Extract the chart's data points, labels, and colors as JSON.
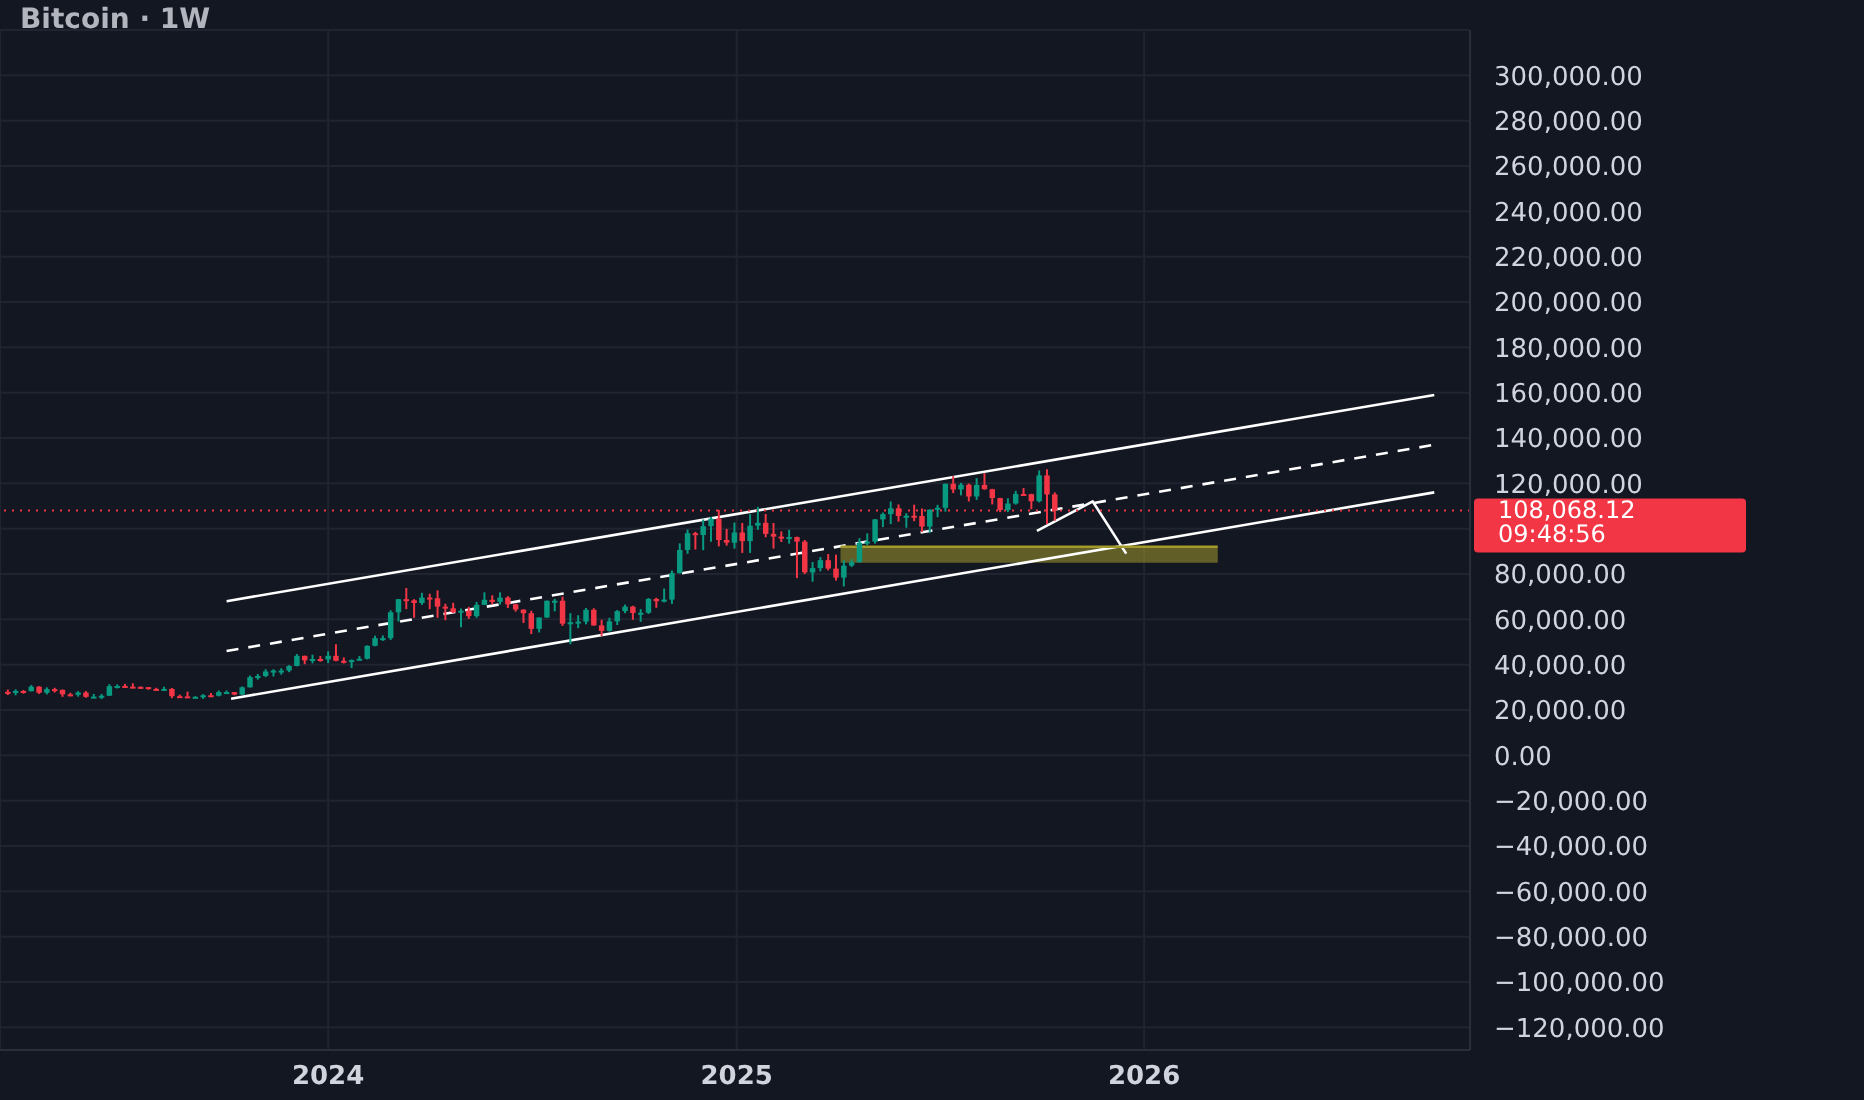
{
  "chart_data": {
    "type": "candlestick",
    "title": "Bitcoin · 1W",
    "x": [
      "2023-03-20",
      "2023-03-27",
      "2023-04-03",
      "2023-04-10",
      "2023-04-17",
      "2023-04-24",
      "2023-05-01",
      "2023-05-08",
      "2023-05-15",
      "2023-05-22",
      "2023-05-29",
      "2023-06-05",
      "2023-06-12",
      "2023-06-19",
      "2023-06-26",
      "2023-07-03",
      "2023-07-10",
      "2023-07-17",
      "2023-07-24",
      "2023-07-31",
      "2023-08-07",
      "2023-08-14",
      "2023-08-21",
      "2023-08-28",
      "2023-09-04",
      "2023-09-11",
      "2023-09-18",
      "2023-09-25",
      "2023-10-02",
      "2023-10-09",
      "2023-10-16",
      "2023-10-23",
      "2023-10-30",
      "2023-11-06",
      "2023-11-13",
      "2023-11-20",
      "2023-11-27",
      "2023-12-04",
      "2023-12-11",
      "2023-12-18",
      "2023-12-25",
      "2024-01-01",
      "2024-01-08",
      "2024-01-15",
      "2024-01-22",
      "2024-01-29",
      "2024-02-05",
      "2024-02-12",
      "2024-02-19",
      "2024-02-26",
      "2024-03-04",
      "2024-03-11",
      "2024-03-18",
      "2024-03-25",
      "2024-04-01",
      "2024-04-08",
      "2024-04-15",
      "2024-04-22",
      "2024-04-29",
      "2024-05-06",
      "2024-05-13",
      "2024-05-20",
      "2024-05-27",
      "2024-06-03",
      "2024-06-10",
      "2024-06-17",
      "2024-06-24",
      "2024-07-01",
      "2024-07-08",
      "2024-07-15",
      "2024-07-22",
      "2024-07-29",
      "2024-08-05",
      "2024-08-12",
      "2024-08-19",
      "2024-08-26",
      "2024-09-02",
      "2024-09-09",
      "2024-09-16",
      "2024-09-23",
      "2024-09-30",
      "2024-10-07",
      "2024-10-14",
      "2024-10-21",
      "2024-10-28",
      "2024-11-04",
      "2024-11-11",
      "2024-11-18",
      "2024-11-25",
      "2024-12-02",
      "2024-12-09",
      "2024-12-16",
      "2024-12-23",
      "2024-12-30",
      "2025-01-06",
      "2025-01-13",
      "2025-01-20",
      "2025-01-27",
      "2025-02-03",
      "2025-02-10",
      "2025-02-17",
      "2025-02-24",
      "2025-03-03",
      "2025-03-10",
      "2025-03-17",
      "2025-03-24",
      "2025-03-31",
      "2025-04-07",
      "2025-04-14",
      "2025-04-21",
      "2025-04-28",
      "2025-05-05",
      "2025-05-12",
      "2025-05-19",
      "2025-05-26",
      "2025-06-02",
      "2025-06-09",
      "2025-06-16",
      "2025-06-23",
      "2025-06-30",
      "2025-07-07",
      "2025-07-14",
      "2025-07-21",
      "2025-07-28",
      "2025-08-04",
      "2025-08-11",
      "2025-08-18",
      "2025-08-25",
      "2025-09-01",
      "2025-09-08",
      "2025-09-15",
      "2025-09-22",
      "2025-09-29",
      "2025-10-06",
      "2025-10-13"
    ],
    "ohlc": [
      [
        28000,
        29000,
        26600,
        27900
      ],
      [
        27900,
        29100,
        26500,
        28400
      ],
      [
        28400,
        28800,
        27200,
        28300
      ],
      [
        28300,
        31000,
        28200,
        30300
      ],
      [
        30300,
        30500,
        27100,
        27600
      ],
      [
        27600,
        30000,
        26900,
        29200
      ],
      [
        29200,
        29800,
        27700,
        28900
      ],
      [
        28900,
        29000,
        25800,
        26900
      ],
      [
        26900,
        27600,
        26100,
        26700
      ],
      [
        26700,
        28300,
        25900,
        27700
      ],
      [
        27700,
        28400,
        25400,
        25800
      ],
      [
        25800,
        27100,
        25400,
        25900
      ],
      [
        25900,
        27100,
        24800,
        26300
      ],
      [
        26300,
        31400,
        26200,
        30500
      ],
      [
        30500,
        31300,
        29500,
        30600
      ],
      [
        30600,
        31500,
        29700,
        30300
      ],
      [
        30300,
        31800,
        29900,
        30200
      ],
      [
        30200,
        30400,
        29500,
        30100
      ],
      [
        30100,
        30100,
        28900,
        29300
      ],
      [
        29300,
        29800,
        28600,
        29000
      ],
      [
        29000,
        30300,
        28700,
        29300
      ],
      [
        29300,
        29700,
        25200,
        26100
      ],
      [
        26100,
        26800,
        25800,
        26000
      ],
      [
        26000,
        28100,
        25300,
        25800
      ],
      [
        25800,
        26100,
        25400,
        25800
      ],
      [
        25800,
        27000,
        24900,
        26500
      ],
      [
        26500,
        27500,
        26000,
        26300
      ],
      [
        26300,
        28600,
        26000,
        27900
      ],
      [
        27900,
        28600,
        27200,
        27900
      ],
      [
        27900,
        27900,
        26500,
        26800
      ],
      [
        26800,
        30400,
        26600,
        30000
      ],
      [
        30000,
        35200,
        29900,
        34500
      ],
      [
        34500,
        35900,
        33400,
        35000
      ],
      [
        35000,
        38000,
        34500,
        37000
      ],
      [
        37000,
        38000,
        34800,
        37400
      ],
      [
        37400,
        38400,
        35600,
        37400
      ],
      [
        37400,
        39800,
        36700,
        39400
      ],
      [
        39400,
        44700,
        39300,
        43900
      ],
      [
        43900,
        44000,
        40200,
        41900
      ],
      [
        41900,
        44400,
        40600,
        42500
      ],
      [
        42500,
        43800,
        41300,
        42300
      ],
      [
        42300,
        45900,
        40700,
        43900
      ],
      [
        43900,
        49000,
        41500,
        41700
      ],
      [
        41700,
        43200,
        40500,
        41600
      ],
      [
        41600,
        42300,
        38500,
        42000
      ],
      [
        42000,
        43800,
        41900,
        42600
      ],
      [
        42600,
        48500,
        42300,
        48300
      ],
      [
        48300,
        52800,
        48100,
        51700
      ],
      [
        51700,
        52900,
        50500,
        51700
      ],
      [
        51700,
        64000,
        50900,
        63100
      ],
      [
        63100,
        69000,
        59000,
        68900
      ],
      [
        68900,
        73800,
        64500,
        68400
      ],
      [
        68400,
        68900,
        60700,
        67200
      ],
      [
        67200,
        71700,
        66400,
        69600
      ],
      [
        69600,
        71300,
        64500,
        69300
      ],
      [
        69300,
        72800,
        60700,
        65600
      ],
      [
        65600,
        66900,
        59600,
        64900
      ],
      [
        64900,
        67300,
        62800,
        63100
      ],
      [
        63100,
        64800,
        56500,
        63800
      ],
      [
        63800,
        65500,
        60200,
        61400
      ],
      [
        61400,
        67700,
        60700,
        66400
      ],
      [
        66400,
        71900,
        66300,
        68600
      ],
      [
        68600,
        70600,
        66600,
        67700
      ],
      [
        67700,
        71900,
        66500,
        69600
      ],
      [
        69600,
        70200,
        65000,
        66600
      ],
      [
        66600,
        66900,
        63400,
        64300
      ],
      [
        64300,
        64400,
        58400,
        62700
      ],
      [
        62700,
        63800,
        53500,
        55800
      ],
      [
        55800,
        60800,
        54200,
        60800
      ],
      [
        60800,
        68300,
        60700,
        68200
      ],
      [
        68200,
        69000,
        63500,
        68200
      ],
      [
        68200,
        70000,
        57100,
        58100
      ],
      [
        58100,
        62700,
        49000,
        58700
      ],
      [
        58700,
        61800,
        56100,
        59000
      ],
      [
        59000,
        65000,
        57800,
        64200
      ],
      [
        64200,
        64900,
        57200,
        57300
      ],
      [
        57300,
        59800,
        52600,
        54900
      ],
      [
        54900,
        60700,
        54600,
        59100
      ],
      [
        59100,
        64100,
        57500,
        63600
      ],
      [
        63600,
        66500,
        62700,
        65600
      ],
      [
        65600,
        66000,
        59800,
        62800
      ],
      [
        62800,
        64500,
        58900,
        62900
      ],
      [
        62900,
        69400,
        62400,
        69000
      ],
      [
        69000,
        69500,
        65100,
        68000
      ],
      [
        68000,
        73600,
        67500,
        68700
      ],
      [
        68700,
        81500,
        66800,
        80400
      ],
      [
        80400,
        93500,
        80200,
        90600
      ],
      [
        90600,
        99600,
        88900,
        98000
      ],
      [
        98000,
        98600,
        90800,
        97200
      ],
      [
        97200,
        104000,
        90500,
        101100
      ],
      [
        101100,
        105200,
        94200,
        104400
      ],
      [
        104400,
        108300,
        92200,
        95000
      ],
      [
        95000,
        99900,
        92500,
        93800
      ],
      [
        93800,
        102700,
        91200,
        98300
      ],
      [
        98300,
        102500,
        89300,
        94500
      ],
      [
        94500,
        106400,
        89300,
        101300
      ],
      [
        101300,
        109600,
        99500,
        102600
      ],
      [
        102600,
        106500,
        96200,
        97700
      ],
      [
        97700,
        102500,
        91200,
        96500
      ],
      [
        96500,
        98800,
        94100,
        96100
      ],
      [
        96100,
        99500,
        93400,
        96300
      ],
      [
        96300,
        96500,
        78200,
        94300
      ],
      [
        94300,
        95000,
        80000,
        80700
      ],
      [
        80700,
        85300,
        76600,
        82600
      ],
      [
        82600,
        87500,
        81200,
        86100
      ],
      [
        86100,
        88800,
        81600,
        82400
      ],
      [
        82400,
        88500,
        77100,
        78400
      ],
      [
        78400,
        86000,
        74500,
        83700
      ],
      [
        83700,
        86500,
        83100,
        85200
      ],
      [
        85200,
        95800,
        85100,
        93800
      ],
      [
        93800,
        97900,
        92800,
        94300
      ],
      [
        94300,
        104300,
        93400,
        104100
      ],
      [
        104100,
        107100,
        100700,
        106400
      ],
      [
        106400,
        112000,
        102000,
        109000
      ],
      [
        109000,
        110700,
        103100,
        105600
      ],
      [
        105600,
        106800,
        100400,
        105700
      ],
      [
        105700,
        110600,
        103300,
        105600
      ],
      [
        105600,
        108900,
        98500,
        100900
      ],
      [
        100900,
        108500,
        98200,
        108400
      ],
      [
        108400,
        110500,
        105100,
        109200
      ],
      [
        109200,
        119900,
        107500,
        119800
      ],
      [
        119800,
        123200,
        115700,
        117300
      ],
      [
        117300,
        120200,
        114700,
        119400
      ],
      [
        119400,
        119900,
        112000,
        114200
      ],
      [
        114200,
        122300,
        112700,
        119300
      ],
      [
        119300,
        124500,
        117200,
        117400
      ],
      [
        117400,
        117600,
        110700,
        113500
      ],
      [
        113500,
        113600,
        107300,
        108200
      ],
      [
        108200,
        113400,
        107300,
        111100
      ],
      [
        111100,
        116700,
        110600,
        115300
      ],
      [
        115300,
        117900,
        114400,
        115200
      ],
      [
        115200,
        115400,
        108600,
        112100
      ],
      [
        112100,
        125700,
        111600,
        123500
      ],
      [
        123500,
        126200,
        102000,
        115100
      ],
      [
        115100,
        116000,
        103500,
        108068.12
      ]
    ],
    "series": [
      {
        "type": "line",
        "color": "#ffffff",
        "x": [
          "2023-10-02",
          "2026-09-18"
        ],
        "values": [
          68000,
          159000
        ]
      },
      {
        "type": "line",
        "color": "#ffffff",
        "line_style": "dashed",
        "x": [
          "2023-10-02",
          "2026-09-18"
        ],
        "values": [
          46000,
          137000
        ]
      },
      {
        "type": "line",
        "color": "#ffffff",
        "x": [
          "2023-10-06",
          "2026-09-18"
        ],
        "values": [
          25000,
          116000
        ]
      },
      {
        "type": "line",
        "color": "#ffffff",
        "x": [
          "2025-09-27",
          "2025-11-16",
          "2025-12-16"
        ],
        "values": [
          99000,
          112000,
          89000
        ]
      },
      {
        "type": "line",
        "color": "#a39a2c",
        "x": [
          "2025-04-04",
          "2026-03-08"
        ],
        "values": [
          92000,
          92000
        ],
        "lower": [
          85000,
          85000
        ],
        "upper": [
          92000,
          92000
        ]
      }
    ],
    "xlim": [
      "2023-03-13",
      "2026-10-20"
    ],
    "xticks": [
      "2024",
      "2025",
      "2026"
    ],
    "ylim": [
      -130000,
      320000
    ],
    "yticks": [
      {
        "value": -120000,
        "label": "−120,000.00"
      },
      {
        "value": -100000,
        "label": "−100,000.00"
      },
      {
        "value": -80000,
        "label": "−80,000.00"
      },
      {
        "value": -60000,
        "label": "−60,000.00"
      },
      {
        "value": -40000,
        "label": "−40,000.00"
      },
      {
        "value": -20000,
        "label": "−20,000.00"
      },
      {
        "value": 0,
        "label": "0.00"
      },
      {
        "value": 20000,
        "label": "20,000.00"
      },
      {
        "value": 40000,
        "label": "40,000.00"
      },
      {
        "value": 60000,
        "label": "60,000.00"
      },
      {
        "value": 80000,
        "label": "80,000.00"
      },
      {
        "value": 100000,
        "label": null
      },
      {
        "value": 120000,
        "label": "120,000.00"
      },
      {
        "value": 140000,
        "label": "140,000.00"
      },
      {
        "value": 160000,
        "label": "160,000.00"
      },
      {
        "value": 180000,
        "label": "180,000.00"
      },
      {
        "value": 200000,
        "label": "200,000.00"
      },
      {
        "value": 220000,
        "label": "220,000.00"
      },
      {
        "value": 240000,
        "label": "240,000.00"
      },
      {
        "value": 260000,
        "label": "260,000.00"
      },
      {
        "value": 280000,
        "label": "280,000.00"
      },
      {
        "value": 300000,
        "label": "300,000.00"
      }
    ],
    "ref_lines": [
      {
        "axis": "y",
        "value": 108068.12,
        "label": "108,068.12",
        "color": "#f23645",
        "line_style": "dotted"
      }
    ],
    "annotations": [
      "09:48:56"
    ],
    "grid": true,
    "marker": "none"
  }
}
